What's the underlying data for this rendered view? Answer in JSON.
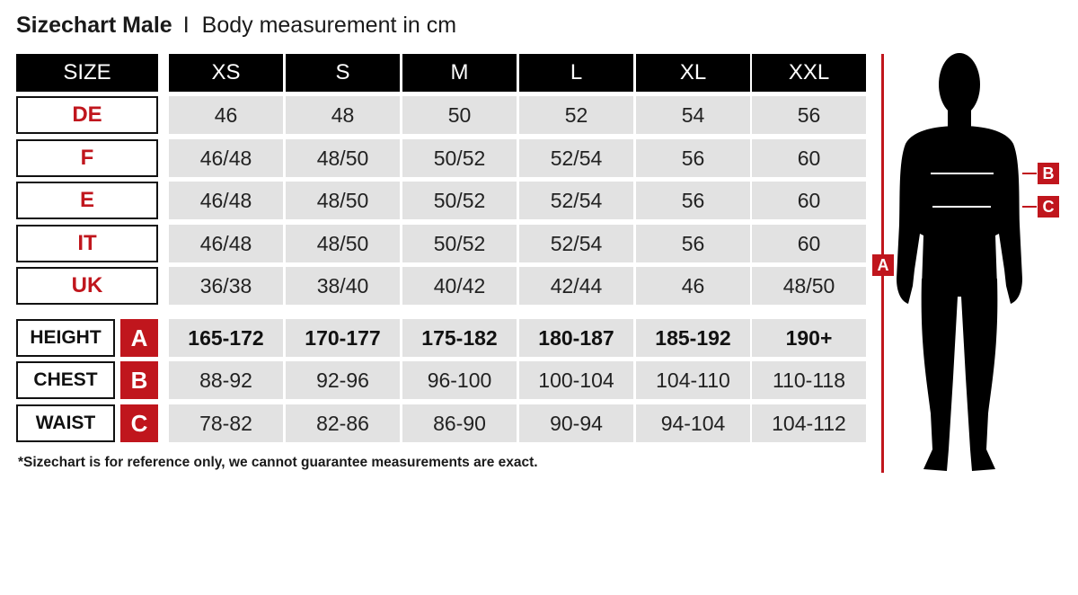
{
  "title": {
    "main": "Sizechart Male",
    "separator": "I",
    "sub": "Body measurement in cm"
  },
  "colors": {
    "accent": "#c0161d",
    "header_bg": "#000000",
    "cell_bg": "#e2e2e2"
  },
  "header": {
    "label": "SIZE",
    "sizes": [
      "XS",
      "S",
      "M",
      "L",
      "XL",
      "XXL"
    ]
  },
  "country_rows": [
    {
      "label": "DE",
      "values": [
        "46",
        "48",
        "50",
        "52",
        "54",
        "56"
      ]
    },
    {
      "label": "F",
      "values": [
        "46/48",
        "48/50",
        "50/52",
        "52/54",
        "56",
        "60"
      ]
    },
    {
      "label": "E",
      "values": [
        "46/48",
        "48/50",
        "50/52",
        "52/54",
        "56",
        "60"
      ]
    },
    {
      "label": "IT",
      "values": [
        "46/48",
        "48/50",
        "50/52",
        "52/54",
        "56",
        "60"
      ]
    },
    {
      "label": "UK",
      "values": [
        "36/38",
        "38/40",
        "40/42",
        "42/44",
        "46",
        "48/50"
      ]
    }
  ],
  "measurement_rows": [
    {
      "label": "HEIGHT",
      "letter": "A",
      "values": [
        "165-172",
        "170-177",
        "175-182",
        "180-187",
        "185-192",
        "190+"
      ]
    },
    {
      "label": "CHEST",
      "letter": "B",
      "values": [
        "88-92",
        "92-96",
        "96-100",
        "100-104",
        "104-110",
        "110-118"
      ]
    },
    {
      "label": "WAIST",
      "letter": "C",
      "values": [
        "78-82",
        "82-86",
        "86-90",
        "90-94",
        "94-104",
        "104-112"
      ]
    }
  ],
  "footnote": "*Sizechart is for reference only, we cannot guarantee measurements are exact.",
  "figure": {
    "height_marker": "A",
    "chest_marker": "B",
    "waist_marker": "C"
  }
}
